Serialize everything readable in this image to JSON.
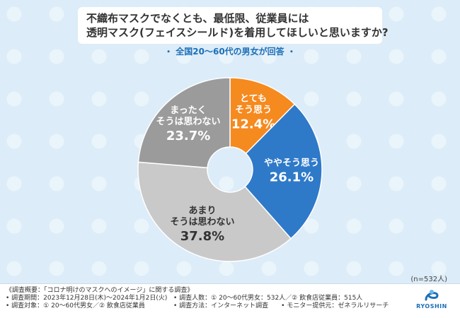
{
  "title": {
    "line1": "不織布マスクでなくとも、最低限、従業員には",
    "line2": "透明マスク(フェイスシールド)を着用してほしいと思いますか?"
  },
  "subtitle": "・ 全国20～60代の男女が回答 ・",
  "chart_data": {
    "type": "pie",
    "donut": true,
    "slices": [
      {
        "label": [
          "とても",
          "そう思う"
        ],
        "value": 12.4,
        "color": "#f58a1f",
        "text_color": "#ffffff"
      },
      {
        "label": [
          "ややそう思う"
        ],
        "value": 26.1,
        "color": "#2f79c9",
        "text_color": "#ffffff"
      },
      {
        "label": [
          "あまり",
          "そうは思わない"
        ],
        "value": 37.8,
        "color": "#c9c9c9",
        "text_color": "#333333"
      },
      {
        "label": [
          "まったく",
          "そうは思わない"
        ],
        "value": 23.7,
        "color": "#9b9b9b",
        "text_color": "#ffffff"
      }
    ]
  },
  "n_label": "(n=532人)",
  "footer": {
    "lines_left": [
      "《調査概要：「コロナ明けのマスクへのイメージ」に関する調査》",
      "• 調査期間：2023年12月28日(木)～2024年1月2日(火)",
      "• 調査対象：① 20～60代男女／② 飲食店従業員"
    ],
    "lines_right": [
      "• 調査人数：① 20～60代男女：532人／② 飲食店従業員：515人",
      "• 調査方法：インターネット調査　　• モニター提供元：ゼネラルリサーチ"
    ],
    "logo_text": "RYOSHIN"
  }
}
